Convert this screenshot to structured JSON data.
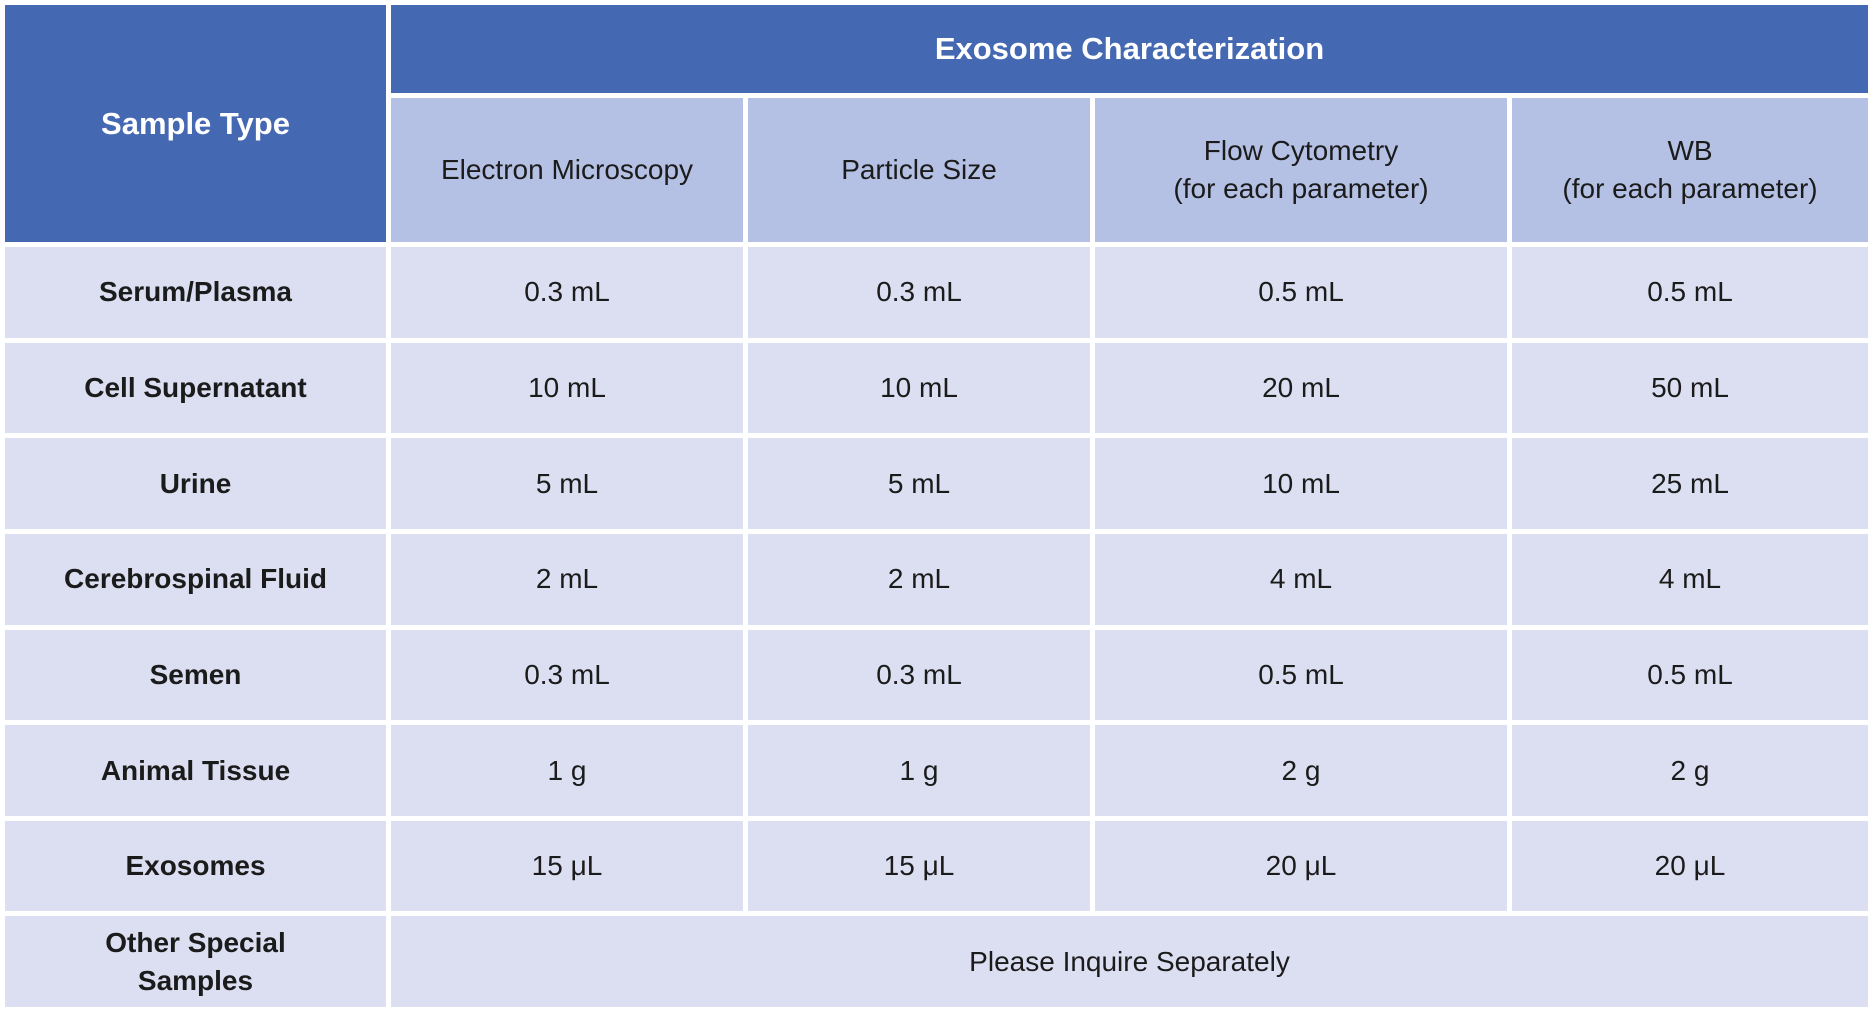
{
  "table": {
    "corner_header": "Sample Type",
    "group_header": "Exosome Characterization",
    "sub_headers": [
      "Electron Microscopy",
      "Particle Size",
      "Flow Cytometry\n(for each parameter)",
      "WB\n(for each parameter)"
    ],
    "rows": [
      {
        "label": "Serum/Plasma",
        "values": [
          "0.3 mL",
          "0.3 mL",
          "0.5 mL",
          "0.5 mL"
        ]
      },
      {
        "label": "Cell Supernatant",
        "values": [
          "10 mL",
          "10 mL",
          "20 mL",
          "50 mL"
        ]
      },
      {
        "label": "Urine",
        "values": [
          "5 mL",
          "5 mL",
          "10 mL",
          "25 mL"
        ]
      },
      {
        "label": "Cerebrospinal Fluid",
        "values": [
          "2 mL",
          "2 mL",
          "4 mL",
          "4 mL"
        ]
      },
      {
        "label": "Semen",
        "values": [
          "0.3 mL",
          "0.3 mL",
          "0.5 mL",
          "0.5 mL"
        ]
      },
      {
        "label": "Animal Tissue",
        "values": [
          "1 g",
          "1 g",
          "2 g",
          "2 g"
        ]
      },
      {
        "label": "Exosomes",
        "values": [
          "15 μL",
          "15 μL",
          "20 μL",
          "20 μL"
        ]
      }
    ],
    "special_row": {
      "label": "Other Special\nSamples",
      "value": "Please Inquire Separately"
    }
  },
  "colors": {
    "header-blue": "#4568b3",
    "subheader-blue": "#b4c1e4",
    "body-lavender": "#dbdff1",
    "border-white": "#ffffff",
    "header-text": "#ffffff",
    "body-text": "#1b1b1b"
  }
}
